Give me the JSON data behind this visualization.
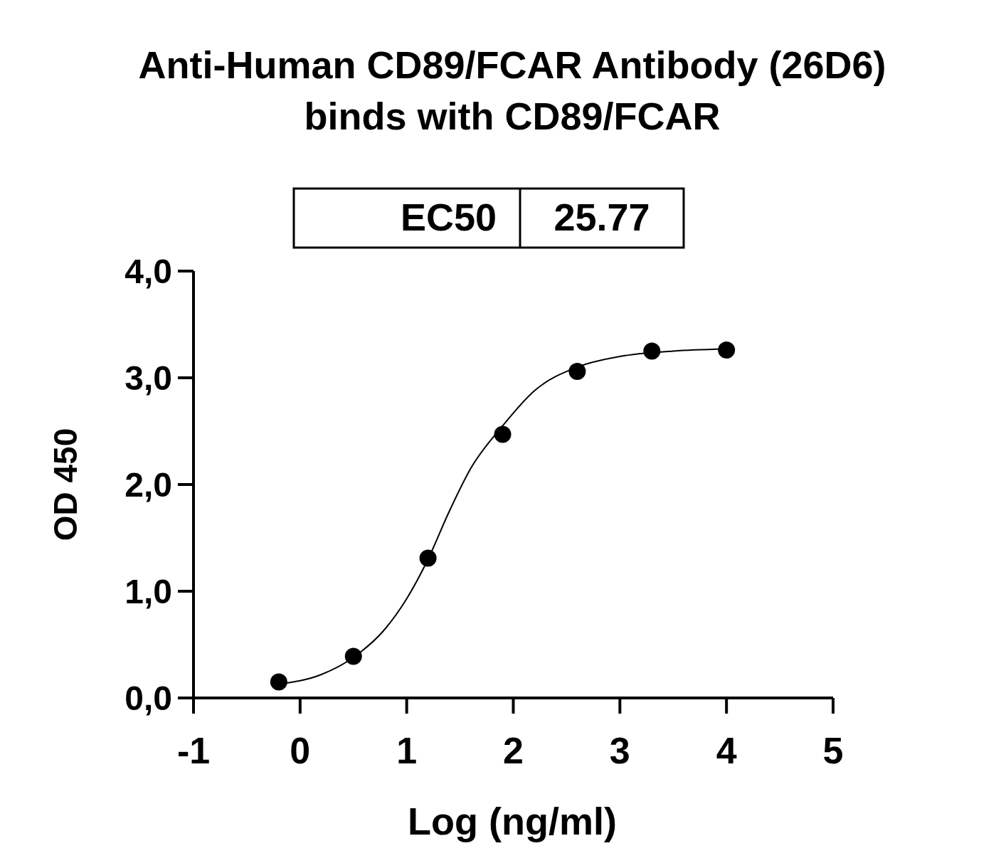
{
  "chart_data": {
    "type": "scatter",
    "title": "Anti-Human CD89/FCAR Antibody (26D6) binds with CD89/FCAR",
    "xlabel": "Log (ng/ml)",
    "ylabel": "OD 450",
    "annotations": [
      "EC50",
      "25.77"
    ],
    "xlim": [
      -1,
      5
    ],
    "xticks": [
      -1,
      0,
      1,
      2,
      3,
      4,
      5
    ],
    "ylim": [
      0,
      4
    ],
    "yticks": [
      {
        "value": 0,
        "label": "0,0"
      },
      {
        "value": 1,
        "label": "1,0"
      },
      {
        "value": 2,
        "label": "2,0"
      },
      {
        "value": 3,
        "label": "3,0"
      },
      {
        "value": 4,
        "label": "4,0"
      }
    ],
    "grid": false,
    "marker": "circle",
    "series": [
      {
        "color": "#000000",
        "x": [
          -0.2,
          0.5,
          1.2,
          1.9,
          2.6,
          3.3,
          4.0
        ],
        "values": [
          0.15,
          0.39,
          1.31,
          2.47,
          3.06,
          3.25,
          3.26
        ]
      },
      {
        "type": "line",
        "color": "#000000",
        "marker": "none",
        "line_style": "solid",
        "x": [
          -0.2,
          0.2,
          0.5,
          0.8,
          1.0,
          1.2,
          1.4,
          1.6,
          1.9,
          2.2,
          2.6,
          3.0,
          3.5,
          4.0
        ],
        "values": [
          0.13,
          0.22,
          0.38,
          0.65,
          0.93,
          1.3,
          1.75,
          2.15,
          2.55,
          2.88,
          3.1,
          3.2,
          3.25,
          3.27
        ]
      }
    ]
  }
}
